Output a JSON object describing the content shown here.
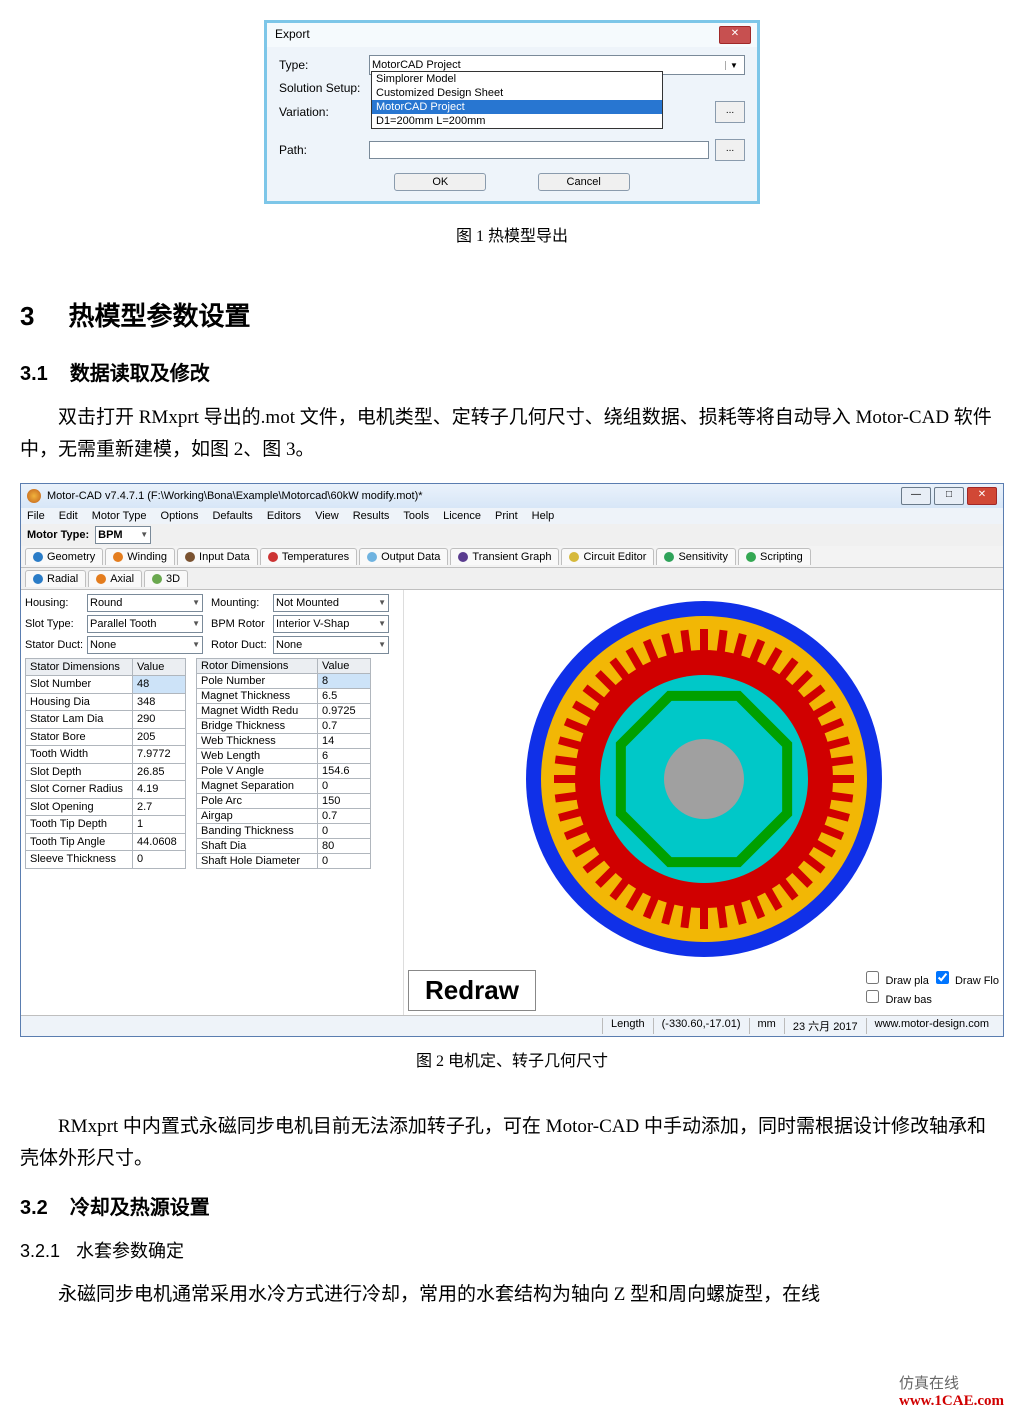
{
  "export_dialog": {
    "title": "Export",
    "rows": {
      "type_label": "Type:",
      "type_value": "MotorCAD Project",
      "solution_label": "Solution Setup:",
      "variation_label": "Variation:",
      "path_label": "Path:"
    },
    "dropdown": {
      "items": [
        {
          "text": "Simplorer Model",
          "highlighted": false
        },
        {
          "text": "Customized Design Sheet",
          "highlighted": false
        },
        {
          "text": "MotorCAD Project",
          "highlighted": true
        },
        {
          "text": "D1=200mm L=200mm",
          "highlighted": false
        }
      ]
    },
    "buttons": {
      "ok": "OK",
      "cancel": "Cancel",
      "browse": "..."
    },
    "close": "✕"
  },
  "captions": {
    "fig1": "图 1  热模型导出",
    "fig2": "图 2  电机定、转子几何尺寸"
  },
  "sections": {
    "s3_num": "3",
    "s3_title": "热模型参数设置",
    "s31_num": "3.1",
    "s31_title": "数据读取及修改",
    "para1": "双击打开 RMxprt 导出的.mot 文件，电机类型、定转子几何尺寸、绕组数据、损耗等将自动导入 Motor-CAD 软件中，无需重新建模，如图 2、图 3。",
    "para2": "RMxprt 中内置式永磁同步电机目前无法添加转子孔，可在 Motor-CAD 中手动添加，同时需根据设计修改轴承和壳体外形尺寸。",
    "s32_num": "3.2",
    "s32_title": "冷却及热源设置",
    "s321_num": "3.2.1",
    "s321_title": "水套参数确定",
    "para3": "永磁同步电机通常采用水冷方式进行冷却，常用的水套结构为轴向 Z 型和周向螺旋型，在线"
  },
  "mcad": {
    "title": "Motor-CAD v7.4.7.1 (F:\\Working\\Bona\\Example\\Motorcad\\60kW modify.mot)*",
    "menu": [
      "File",
      "Edit",
      "Motor Type",
      "Options",
      "Defaults",
      "Editors",
      "View",
      "Results",
      "Tools",
      "Licence",
      "Print",
      "Help"
    ],
    "motor_type_label": "Motor Type:",
    "motor_type_value": "BPM",
    "main_tabs": [
      {
        "icon": "clr-blue",
        "label": "Geometry"
      },
      {
        "icon": "clr-orange",
        "label": "Winding"
      },
      {
        "icon": "clr-brown",
        "label": "Input Data"
      },
      {
        "icon": "clr-red",
        "label": "Temperatures"
      },
      {
        "icon": "clr-lblue",
        "label": "Output Data"
      },
      {
        "icon": "clr-purple",
        "label": "Transient Graph"
      },
      {
        "icon": "clr-yel",
        "label": "Circuit Editor"
      },
      {
        "icon": "clr-cyan",
        "label": "Sensitivity"
      },
      {
        "icon": "clr-green",
        "label": "Scripting"
      }
    ],
    "sub_tabs": [
      {
        "icon": "clr-blue",
        "label": "Radial"
      },
      {
        "icon": "clr-orange",
        "label": "Axial"
      },
      {
        "icon": "clr-lime",
        "label": "3D"
      }
    ],
    "combos": [
      [
        {
          "label": "Housing:",
          "val": "Round"
        },
        {
          "label": "Mounting:",
          "val": "Not Mounted"
        }
      ],
      [
        {
          "label": "Slot Type:",
          "val": "Parallel Tooth"
        },
        {
          "label": "BPM Rotor",
          "val": "Interior V-Shap"
        }
      ],
      [
        {
          "label": "Stator Duct:",
          "val": "None"
        },
        {
          "label": "Rotor Duct:",
          "val": "None"
        }
      ]
    ],
    "stator_table": {
      "header": [
        "Stator Dimensions",
        "Value"
      ],
      "rows": [
        [
          "Slot Number",
          "48",
          true
        ],
        [
          "Housing Dia",
          "348",
          false
        ],
        [
          "Stator Lam Dia",
          "290",
          false
        ],
        [
          "Stator Bore",
          "205",
          false
        ],
        [
          "Tooth Width",
          "7.9772",
          false
        ],
        [
          "Slot Depth",
          "26.85",
          false
        ],
        [
          "Slot Corner Radius",
          "4.19",
          false
        ],
        [
          "Slot Opening",
          "2.7",
          false
        ],
        [
          "Tooth Tip Depth",
          "1",
          false
        ],
        [
          "Tooth Tip Angle",
          "44.0608",
          false
        ],
        [
          "Sleeve Thickness",
          "0",
          false
        ]
      ]
    },
    "rotor_table": {
      "header": [
        "Rotor Dimensions",
        "Value"
      ],
      "rows": [
        [
          "Pole Number",
          "8",
          true
        ],
        [
          "Magnet Thickness",
          "6.5",
          false
        ],
        [
          "Magnet Width Redu",
          "0.9725",
          false
        ],
        [
          "Bridge Thickness",
          "0.7",
          false
        ],
        [
          "Web Thickness",
          "14",
          false
        ],
        [
          "Web Length",
          "6",
          false
        ],
        [
          "Pole V Angle",
          "154.6",
          false
        ],
        [
          "Magnet Separation",
          "0",
          false
        ],
        [
          "Pole Arc",
          "150",
          false
        ],
        [
          "Airgap",
          "0.7",
          false
        ],
        [
          "Banding Thickness",
          "0",
          false
        ],
        [
          "Shaft Dia",
          "80",
          false
        ],
        [
          "Shaft Hole Diameter",
          "0",
          false
        ]
      ]
    },
    "motor_svg": {
      "bg": "#ffffff",
      "outer": {
        "r": 178,
        "fill": "#1030e8"
      },
      "stator_back": {
        "r": 150,
        "fill": "#d00000"
      },
      "slot_ring": {
        "r_out": 150,
        "r_in": 116,
        "slots": 48,
        "slot_fill": "#f2b705",
        "tooth_fill": "#d00000"
      },
      "stator_bore": {
        "r": 106,
        "fill": "#d00000"
      },
      "airgap": {
        "r": 104,
        "fill": "#00c8c8"
      },
      "rotor": {
        "r": 102,
        "fill": "#00c8c8"
      },
      "magnet_poly_color": "#00a000",
      "shaft": {
        "r": 40,
        "fill": "#a0a0a0"
      },
      "poles": 8
    },
    "redraw": "Redraw",
    "draw_checks": {
      "pla": "Draw pla",
      "flo": "Draw Flo",
      "bas": "Draw bas"
    },
    "status": {
      "length": "Length",
      "coord": "(-330.60,-17.01)",
      "unit": "mm",
      "date": "23 六月 2017",
      "site": "www.motor-design.com"
    }
  },
  "footer": {
    "brand": "仿真在线",
    "url": "www.1CAE.com"
  }
}
